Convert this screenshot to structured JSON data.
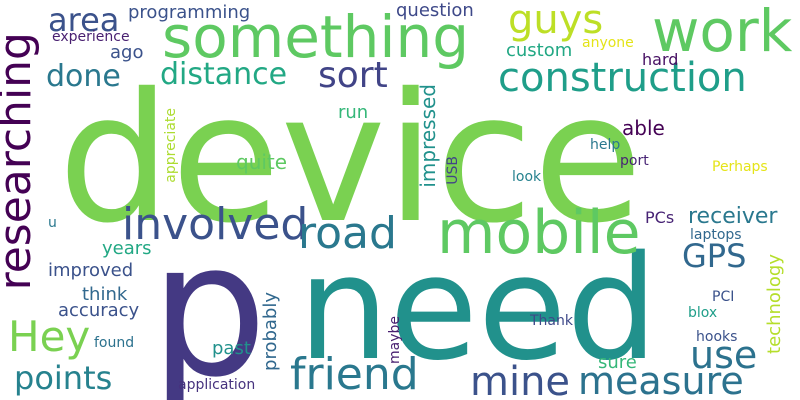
{
  "words": [
    {
      "text": "device",
      "color": "#7ad151"
    },
    {
      "text": "p",
      "color": "#443983"
    },
    {
      "text": "need",
      "color": "#21918c"
    },
    {
      "text": "something",
      "color": "#5ec962"
    },
    {
      "text": "work",
      "color": "#5ec962"
    },
    {
      "text": "mobile",
      "color": "#5ec962"
    },
    {
      "text": "construction",
      "color": "#1f9e89"
    },
    {
      "text": "researching",
      "color": "#440154"
    },
    {
      "text": "involved",
      "color": "#3b528b"
    },
    {
      "text": "road",
      "color": "#2a788e"
    },
    {
      "text": "friend",
      "color": "#2a788e"
    },
    {
      "text": "guys",
      "color": "#bddf26"
    },
    {
      "text": "sort",
      "color": "#414487"
    },
    {
      "text": "distance",
      "color": "#22a884"
    },
    {
      "text": "area",
      "color": "#3b528b"
    },
    {
      "text": "done",
      "color": "#2a788e"
    },
    {
      "text": "Hey",
      "color": "#7ad151"
    },
    {
      "text": "mine",
      "color": "#3b528b"
    },
    {
      "text": "measure",
      "color": "#2c728e"
    },
    {
      "text": "use",
      "color": "#2c728e"
    },
    {
      "text": "points",
      "color": "#26828e"
    },
    {
      "text": "GPS",
      "color": "#31688e"
    },
    {
      "text": "receiver",
      "color": "#2a788e"
    },
    {
      "text": "programming",
      "color": "#3b528b"
    },
    {
      "text": "question",
      "color": "#3e4989"
    },
    {
      "text": "experience",
      "color": "#481f70"
    },
    {
      "text": "custom",
      "color": "#22a884"
    },
    {
      "text": "anyone",
      "color": "#e4e419"
    },
    {
      "text": "ago",
      "color": "#3b528b"
    },
    {
      "text": "hard",
      "color": "#471063"
    },
    {
      "text": "PCs",
      "color": "#482475"
    },
    {
      "text": "impressed",
      "color": "#21918c"
    },
    {
      "text": "able",
      "color": "#440154"
    },
    {
      "text": "run",
      "color": "#35b779"
    },
    {
      "text": "quite",
      "color": "#5ec962"
    },
    {
      "text": "appreciate",
      "color": "#addc30"
    },
    {
      "text": "help",
      "color": "#2a788e"
    },
    {
      "text": "port",
      "color": "#482475"
    },
    {
      "text": "Perhaps",
      "color": "#e5e419"
    },
    {
      "text": "look",
      "color": "#26828e"
    },
    {
      "text": "USB",
      "color": "#414487"
    },
    {
      "text": "years",
      "color": "#22a884"
    },
    {
      "text": "laptops",
      "color": "#31688e"
    },
    {
      "text": "improved",
      "color": "#3b528b"
    },
    {
      "text": "think",
      "color": "#31688e"
    },
    {
      "text": "accuracy",
      "color": "#3b528b"
    },
    {
      "text": "probably",
      "color": "#31688e"
    },
    {
      "text": "technology",
      "color": "#b5de2b"
    },
    {
      "text": "PCI",
      "color": "#3b528b"
    },
    {
      "text": "blox",
      "color": "#1f9e89"
    },
    {
      "text": "u",
      "color": "#2a788e"
    },
    {
      "text": "Thank",
      "color": "#3e4989"
    },
    {
      "text": "maybe",
      "color": "#481f70"
    },
    {
      "text": "hooks",
      "color": "#3b528b"
    },
    {
      "text": "found",
      "color": "#2c728e"
    },
    {
      "text": "past",
      "color": "#21918c"
    },
    {
      "text": "sure",
      "color": "#35b779"
    },
    {
      "text": "application",
      "color": "#46327e"
    }
  ]
}
